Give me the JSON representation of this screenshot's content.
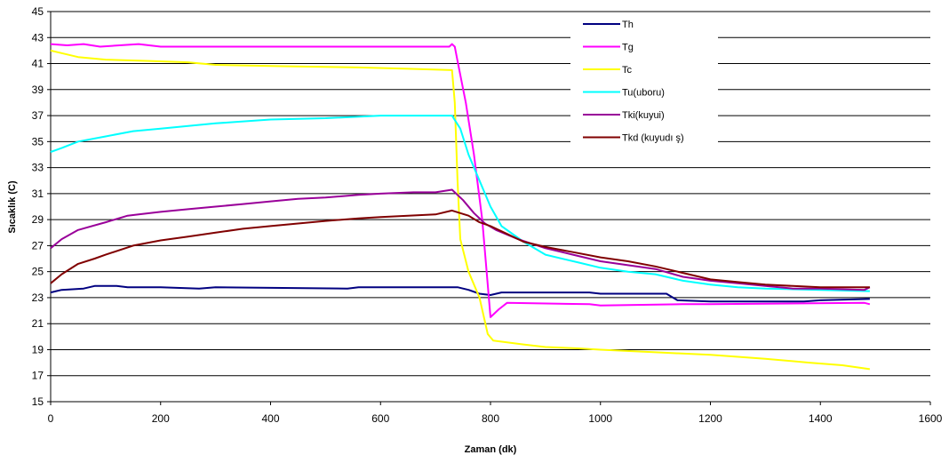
{
  "chart_data": {
    "type": "line",
    "title": "",
    "xlabel": "Zaman (dk)",
    "ylabel": "Sıcaklık (C)",
    "xlim": [
      0,
      1600
    ],
    "ylim": [
      15,
      45
    ],
    "x_ticks": [
      0,
      200,
      400,
      600,
      800,
      1000,
      1200,
      1400,
      1600
    ],
    "y_ticks": [
      15,
      17,
      19,
      21,
      23,
      25,
      27,
      29,
      31,
      33,
      35,
      37,
      39,
      41,
      43,
      45
    ],
    "grid": "horizontal",
    "legend_position": "top-right",
    "series": [
      {
        "name": "Th",
        "color": "#000080",
        "points": [
          [
            0,
            23.4
          ],
          [
            10,
            23.5
          ],
          [
            20,
            23.6
          ],
          [
            60,
            23.7
          ],
          [
            80,
            23.9
          ],
          [
            120,
            23.9
          ],
          [
            140,
            23.8
          ],
          [
            200,
            23.8
          ],
          [
            270,
            23.7
          ],
          [
            300,
            23.8
          ],
          [
            540,
            23.7
          ],
          [
            560,
            23.8
          ],
          [
            740,
            23.8
          ],
          [
            760,
            23.6
          ],
          [
            780,
            23.3
          ],
          [
            800,
            23.2
          ],
          [
            820,
            23.4
          ],
          [
            980,
            23.4
          ],
          [
            1000,
            23.3
          ],
          [
            1120,
            23.3
          ],
          [
            1140,
            22.8
          ],
          [
            1200,
            22.7
          ],
          [
            1370,
            22.7
          ],
          [
            1400,
            22.8
          ],
          [
            1490,
            22.9
          ]
        ]
      },
      {
        "name": "Tg",
        "color": "#ff00ff",
        "points": [
          [
            0,
            42.5
          ],
          [
            30,
            42.4
          ],
          [
            60,
            42.5
          ],
          [
            90,
            42.3
          ],
          [
            160,
            42.5
          ],
          [
            200,
            42.3
          ],
          [
            600,
            42.3
          ],
          [
            725,
            42.3
          ],
          [
            730,
            42.5
          ],
          [
            735,
            42.3
          ],
          [
            740,
            41.2
          ],
          [
            755,
            38
          ],
          [
            770,
            34
          ],
          [
            785,
            29
          ],
          [
            795,
            24
          ],
          [
            800,
            21.5
          ],
          [
            815,
            22.1
          ],
          [
            830,
            22.6
          ],
          [
            980,
            22.5
          ],
          [
            1000,
            22.4
          ],
          [
            1150,
            22.5
          ],
          [
            1200,
            22.5
          ],
          [
            1480,
            22.6
          ],
          [
            1490,
            22.5
          ]
        ]
      },
      {
        "name": "Tc",
        "color": "#ffff00",
        "points": [
          [
            0,
            42.0
          ],
          [
            20,
            41.8
          ],
          [
            50,
            41.5
          ],
          [
            100,
            41.3
          ],
          [
            180,
            41.2
          ],
          [
            250,
            41.1
          ],
          [
            300,
            40.9
          ],
          [
            420,
            40.8
          ],
          [
            560,
            40.7
          ],
          [
            650,
            40.6
          ],
          [
            730,
            40.5
          ],
          [
            735,
            38
          ],
          [
            740,
            32
          ],
          [
            745,
            27.5
          ],
          [
            760,
            25
          ],
          [
            780,
            23
          ],
          [
            795,
            20.2
          ],
          [
            805,
            19.7
          ],
          [
            860,
            19.4
          ],
          [
            900,
            19.2
          ],
          [
            960,
            19.1
          ],
          [
            1000,
            19.0
          ],
          [
            1100,
            18.8
          ],
          [
            1200,
            18.6
          ],
          [
            1300,
            18.3
          ],
          [
            1380,
            18.0
          ],
          [
            1440,
            17.8
          ],
          [
            1490,
            17.5
          ]
        ]
      },
      {
        "name": "Tu(uboru)",
        "color": "#00ffff",
        "points": [
          [
            0,
            34.2
          ],
          [
            20,
            34.5
          ],
          [
            50,
            35.0
          ],
          [
            100,
            35.4
          ],
          [
            150,
            35.8
          ],
          [
            200,
            36.0
          ],
          [
            300,
            36.4
          ],
          [
            400,
            36.7
          ],
          [
            500,
            36.8
          ],
          [
            600,
            37.0
          ],
          [
            700,
            37.0
          ],
          [
            730,
            37.0
          ],
          [
            745,
            36.0
          ],
          [
            760,
            34.0
          ],
          [
            780,
            32.0
          ],
          [
            800,
            30.0
          ],
          [
            820,
            28.5
          ],
          [
            860,
            27.3
          ],
          [
            900,
            26.3
          ],
          [
            960,
            25.7
          ],
          [
            1000,
            25.3
          ],
          [
            1050,
            25.0
          ],
          [
            1100,
            24.8
          ],
          [
            1150,
            24.3
          ],
          [
            1200,
            24.0
          ],
          [
            1250,
            23.8
          ],
          [
            1300,
            23.7
          ],
          [
            1400,
            23.6
          ],
          [
            1490,
            23.5
          ]
        ]
      },
      {
        "name": "Tki(kuyui)",
        "color": "#990099",
        "points": [
          [
            0,
            26.8
          ],
          [
            20,
            27.5
          ],
          [
            50,
            28.2
          ],
          [
            100,
            28.8
          ],
          [
            140,
            29.3
          ],
          [
            160,
            29.4
          ],
          [
            200,
            29.6
          ],
          [
            250,
            29.8
          ],
          [
            300,
            30.0
          ],
          [
            350,
            30.2
          ],
          [
            400,
            30.4
          ],
          [
            450,
            30.6
          ],
          [
            500,
            30.7
          ],
          [
            560,
            30.9
          ],
          [
            600,
            31.0
          ],
          [
            660,
            31.1
          ],
          [
            700,
            31.1
          ],
          [
            730,
            31.3
          ],
          [
            750,
            30.5
          ],
          [
            770,
            29.5
          ],
          [
            790,
            28.7
          ],
          [
            810,
            28.2
          ],
          [
            850,
            27.5
          ],
          [
            900,
            26.8
          ],
          [
            950,
            26.3
          ],
          [
            1000,
            25.8
          ],
          [
            1050,
            25.5
          ],
          [
            1100,
            25.2
          ],
          [
            1150,
            24.6
          ],
          [
            1200,
            24.3
          ],
          [
            1250,
            24.1
          ],
          [
            1300,
            23.9
          ],
          [
            1350,
            23.7
          ],
          [
            1400,
            23.7
          ],
          [
            1480,
            23.6
          ],
          [
            1490,
            23.8
          ]
        ]
      },
      {
        "name": "Tkd (kuyudı ş)",
        "color": "#800000",
        "points": [
          [
            0,
            24.1
          ],
          [
            20,
            24.8
          ],
          [
            50,
            25.6
          ],
          [
            80,
            26.0
          ],
          [
            100,
            26.3
          ],
          [
            150,
            27.0
          ],
          [
            200,
            27.4
          ],
          [
            250,
            27.7
          ],
          [
            300,
            28.0
          ],
          [
            350,
            28.3
          ],
          [
            400,
            28.5
          ],
          [
            450,
            28.7
          ],
          [
            500,
            28.9
          ],
          [
            560,
            29.1
          ],
          [
            600,
            29.2
          ],
          [
            650,
            29.3
          ],
          [
            700,
            29.4
          ],
          [
            730,
            29.7
          ],
          [
            760,
            29.3
          ],
          [
            780,
            28.8
          ],
          [
            800,
            28.5
          ],
          [
            830,
            27.9
          ],
          [
            860,
            27.3
          ],
          [
            900,
            26.9
          ],
          [
            950,
            26.5
          ],
          [
            1000,
            26.1
          ],
          [
            1050,
            25.8
          ],
          [
            1100,
            25.4
          ],
          [
            1150,
            24.9
          ],
          [
            1200,
            24.4
          ],
          [
            1250,
            24.2
          ],
          [
            1300,
            24.0
          ],
          [
            1350,
            23.9
          ],
          [
            1400,
            23.8
          ],
          [
            1490,
            23.8
          ]
        ]
      }
    ]
  }
}
